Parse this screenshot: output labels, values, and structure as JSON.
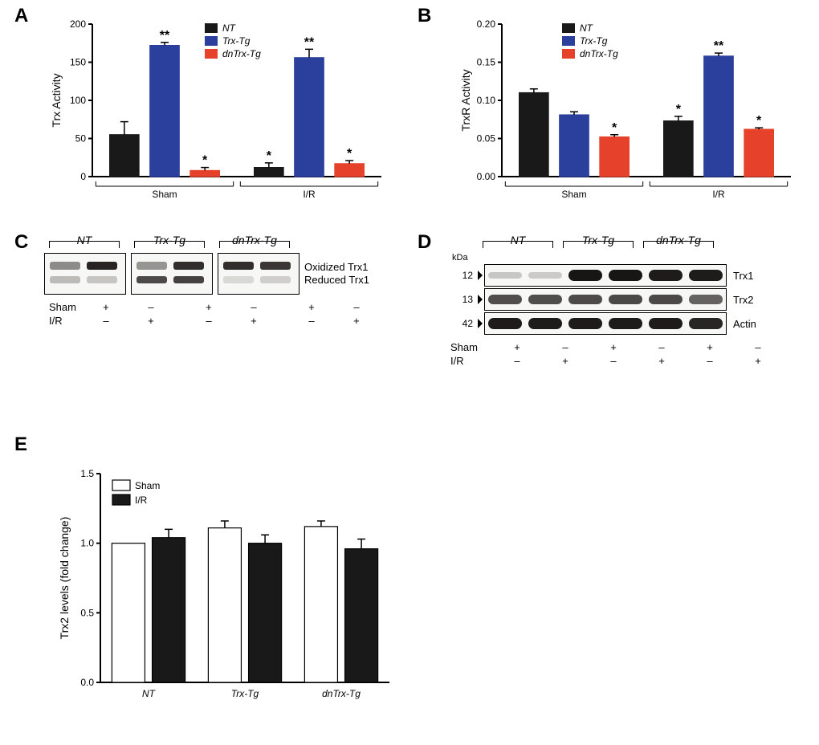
{
  "panels": {
    "A": {
      "label": "A"
    },
    "B": {
      "label": "B"
    },
    "C": {
      "label": "C"
    },
    "D": {
      "label": "D"
    },
    "E": {
      "label": "E"
    }
  },
  "colors": {
    "nt": "#191919",
    "trx": "#2b3f9c",
    "dntrx": "#e6412a",
    "sham_fill": "#ffffff",
    "ir_fill": "#191919",
    "axis": "#000000",
    "bg": "#ffffff",
    "blot_bg": "#f4f3f0",
    "band_dark": "#2e2a27",
    "band_mid": "#6b635c",
    "band_light": "#9b948c"
  },
  "genotypes": {
    "nt": "NT",
    "trx": "Trx-Tg",
    "dntrx": "dnTrx-Tg"
  },
  "conditions": {
    "sham": "Sham",
    "ir": "I/R"
  },
  "chartA": {
    "type": "bar",
    "y_title": "Trx Activity",
    "ylim": [
      0,
      200
    ],
    "ytick_step": 50,
    "groups": [
      "Sham",
      "I/R"
    ],
    "series": [
      {
        "key": "nt",
        "label": "NT",
        "color": "#191919"
      },
      {
        "key": "trx",
        "label": "Trx-Tg",
        "color": "#2b3f9c"
      },
      {
        "key": "dntrx",
        "label": "dnTrx-Tg",
        "color": "#e6412a"
      }
    ],
    "values": {
      "Sham": {
        "nt": 55,
        "trx": 172,
        "dntrx": 8
      },
      "I/R": {
        "nt": 12,
        "trx": 156,
        "dntrx": 17
      }
    },
    "errors": {
      "Sham": {
        "nt": 17,
        "trx": 4,
        "dntrx": 4
      },
      "I/R": {
        "nt": 6,
        "trx": 11,
        "dntrx": 4
      }
    },
    "sig": {
      "Sham": {
        "trx": "**",
        "dntrx": "*"
      },
      "I/R": {
        "nt": "*",
        "trx": "**",
        "dntrx": "*"
      }
    },
    "bar_width": 0.8,
    "tick_fontsize": 12,
    "title_fontsize": 14
  },
  "chartB": {
    "type": "bar",
    "y_title": "TrxR Activity",
    "ylim": [
      0,
      0.2
    ],
    "ytick_step": 0.05,
    "groups": [
      "Sham",
      "I/R"
    ],
    "series": [
      {
        "key": "nt",
        "label": "NT",
        "color": "#191919"
      },
      {
        "key": "trx",
        "label": "Trx-Tg",
        "color": "#2b3f9c"
      },
      {
        "key": "dntrx",
        "label": "dnTrx-Tg",
        "color": "#e6412a"
      }
    ],
    "values": {
      "Sham": {
        "nt": 0.11,
        "trx": 0.081,
        "dntrx": 0.052
      },
      "I/R": {
        "nt": 0.073,
        "trx": 0.158,
        "dntrx": 0.062
      }
    },
    "errors": {
      "Sham": {
        "nt": 0.005,
        "trx": 0.004,
        "dntrx": 0.003
      },
      "I/R": {
        "nt": 0.006,
        "trx": 0.004,
        "dntrx": 0.002
      }
    },
    "sig": {
      "Sham": {
        "dntrx": "*"
      },
      "I/R": {
        "nt": "*",
        "trx": "**",
        "dntrx": "*"
      }
    },
    "bar_width": 0.8,
    "tick_fontsize": 12,
    "title_fontsize": 14
  },
  "panelC": {
    "groups": [
      "NT",
      "Trx-Tg",
      "dnTrx-Tg"
    ],
    "right_labels": {
      "top": "Oxidized Trx1",
      "bot": "Reduced Trx1"
    },
    "cond_rows": [
      "Sham",
      "I/R"
    ],
    "cond_grid": {
      "Sham": [
        "+",
        "–",
        "+",
        "–",
        "+",
        "–"
      ],
      "I/R": [
        "–",
        "+",
        "–",
        "+",
        "–",
        "+"
      ]
    },
    "bands": {
      "nt": {
        "sham": {
          "ox": 0.4,
          "red": 0.2
        },
        "ir": {
          "ox": 0.95,
          "red": 0.15
        }
      },
      "trx": {
        "sham": {
          "ox": 0.35,
          "red": 0.8
        },
        "ir": {
          "ox": 0.9,
          "red": 0.85
        }
      },
      "dntrx": {
        "sham": {
          "ox": 0.9,
          "red": 0.05
        },
        "ir": {
          "ox": 0.85,
          "red": 0.1
        }
      }
    }
  },
  "panelD": {
    "groups": [
      "NT",
      "Trx-Tg",
      "dnTrx-Tg"
    ],
    "kDa_label": "kDa",
    "rows": [
      {
        "mw": "12",
        "label": "Trx1",
        "intensity": [
          0.1,
          0.08,
          0.98,
          0.98,
          0.95,
          0.95
        ]
      },
      {
        "mw": "13",
        "label": "Trx2",
        "intensity": [
          0.7,
          0.7,
          0.72,
          0.73,
          0.73,
          0.6
        ]
      },
      {
        "mw": "42",
        "label": "Actin",
        "intensity": [
          0.95,
          0.95,
          0.95,
          0.95,
          0.95,
          0.9
        ]
      }
    ],
    "cond_rows": [
      "Sham",
      "I/R"
    ],
    "cond_grid": {
      "Sham": [
        "+",
        "–",
        "+",
        "–",
        "+",
        "–"
      ],
      "I/R": [
        "–",
        "+",
        "–",
        "+",
        "–",
        "+"
      ]
    }
  },
  "chartE": {
    "type": "bar",
    "y_title": "Trx2 levels (fold change)",
    "ylim": [
      0.0,
      1.5
    ],
    "ytick_step": 0.5,
    "groups": [
      "NT",
      "Trx-Tg",
      "dnTrx-Tg"
    ],
    "series": [
      {
        "key": "sham",
        "label": "Sham",
        "fill": "#ffffff",
        "stroke": "#000000"
      },
      {
        "key": "ir",
        "label": "I/R",
        "fill": "#191919",
        "stroke": "#000000"
      }
    ],
    "values": {
      "NT": {
        "sham": 1.0,
        "ir": 1.04
      },
      "Trx-Tg": {
        "sham": 1.11,
        "ir": 1.0
      },
      "dnTrx-Tg": {
        "sham": 1.12,
        "ir": 0.96
      }
    },
    "errors": {
      "NT": {
        "sham": 0.0,
        "ir": 0.06
      },
      "Trx-Tg": {
        "sham": 0.05,
        "ir": 0.06
      },
      "dnTrx-Tg": {
        "sham": 0.04,
        "ir": 0.07
      }
    },
    "bar_width": 0.9,
    "tick_fontsize": 12,
    "title_fontsize": 14
  }
}
